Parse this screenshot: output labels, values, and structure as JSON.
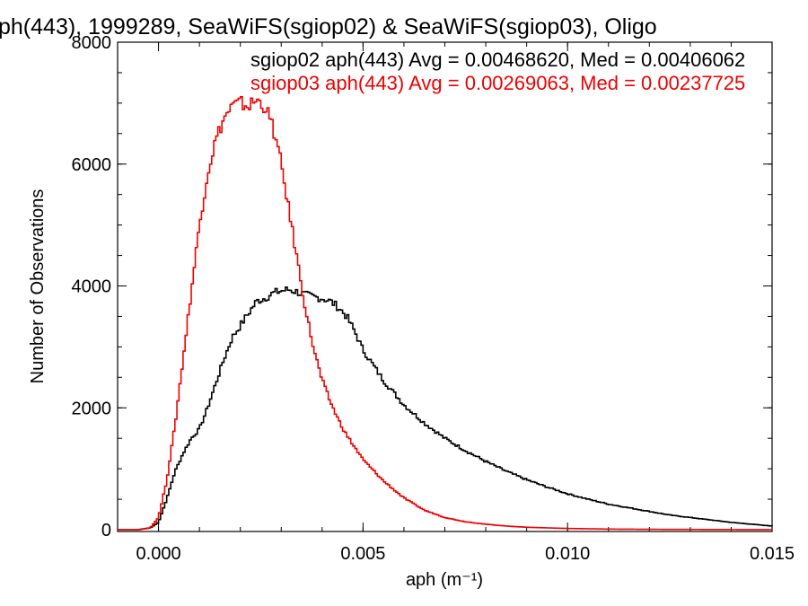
{
  "chart_data": {
    "type": "line",
    "title": "ph(443), 1999289, SeaWiFS(sgiop02) & SeaWiFS(sgiop03), Oligo",
    "xlabel": "aph (m⁻¹)",
    "ylabel": "Number of Observations",
    "xlim": [
      -0.001,
      0.015
    ],
    "ylim": [
      0,
      8000
    ],
    "x_ticks": [
      0.0,
      0.005,
      0.01,
      0.015
    ],
    "x_tick_labels": [
      "0.000",
      "0.005",
      "0.010",
      "0.015"
    ],
    "y_ticks": [
      0,
      2000,
      4000,
      6000,
      8000
    ],
    "y_tick_labels": [
      "0",
      "2000",
      "4000",
      "6000",
      "8000"
    ],
    "grid": false,
    "annotations": [
      "sgiop02 aph(443) Avg = 0.00468620, Med = 0.00406062",
      "sgiop03 aph(443) Avg = 0.00269063, Med = 0.00237725"
    ],
    "series": [
      {
        "name": "sgiop02",
        "color": "#000000",
        "x": [
          -0.001,
          -0.0005,
          -0.0002,
          0.0,
          0.0002,
          0.0004,
          0.0006,
          0.0008,
          0.001,
          0.0012,
          0.0014,
          0.0016,
          0.0018,
          0.002,
          0.0022,
          0.0024,
          0.0026,
          0.0028,
          0.003,
          0.0032,
          0.0034,
          0.0036,
          0.0038,
          0.004,
          0.0042,
          0.0044,
          0.0046,
          0.0048,
          0.005,
          0.0055,
          0.006,
          0.0065,
          0.007,
          0.0075,
          0.008,
          0.0085,
          0.009,
          0.0095,
          0.01,
          0.0105,
          0.011,
          0.0115,
          0.012,
          0.0125,
          0.013,
          0.0135,
          0.014,
          0.0145,
          0.015
        ],
        "y": [
          0,
          0,
          30,
          120,
          500,
          950,
          1250,
          1500,
          1650,
          2000,
          2400,
          2800,
          3150,
          3350,
          3550,
          3750,
          3800,
          3880,
          3920,
          3940,
          3900,
          3850,
          3820,
          3800,
          3750,
          3650,
          3500,
          3250,
          2950,
          2450,
          2050,
          1750,
          1500,
          1300,
          1120,
          960,
          820,
          700,
          590,
          500,
          420,
          360,
          300,
          240,
          200,
          160,
          120,
          90,
          60
        ]
      },
      {
        "name": "sgiop03",
        "color": "#ee0000",
        "x": [
          -0.001,
          -0.0005,
          -0.0002,
          0.0,
          0.0002,
          0.0004,
          0.0006,
          0.0008,
          0.001,
          0.0012,
          0.0014,
          0.0016,
          0.0018,
          0.002,
          0.0022,
          0.0024,
          0.0026,
          0.0028,
          0.003,
          0.0032,
          0.0034,
          0.0036,
          0.0038,
          0.004,
          0.0042,
          0.0044,
          0.0046,
          0.0048,
          0.005,
          0.0055,
          0.006,
          0.0065,
          0.007,
          0.0075,
          0.008,
          0.0085,
          0.009,
          0.0095,
          0.01,
          0.0105,
          0.011,
          0.0115,
          0.012,
          0.0125,
          0.013,
          0.0135,
          0.014,
          0.0145,
          0.015
        ],
        "y": [
          0,
          0,
          30,
          200,
          800,
          1700,
          2800,
          3900,
          5000,
          5850,
          6400,
          6750,
          6950,
          7000,
          6950,
          7050,
          6950,
          6600,
          6000,
          5200,
          4400,
          3600,
          2950,
          2450,
          2100,
          1800,
          1550,
          1350,
          1150,
          800,
          520,
          320,
          200,
          130,
          90,
          60,
          40,
          30,
          20,
          15,
          10,
          8,
          6,
          5,
          4,
          3,
          2,
          1,
          0
        ]
      }
    ]
  }
}
